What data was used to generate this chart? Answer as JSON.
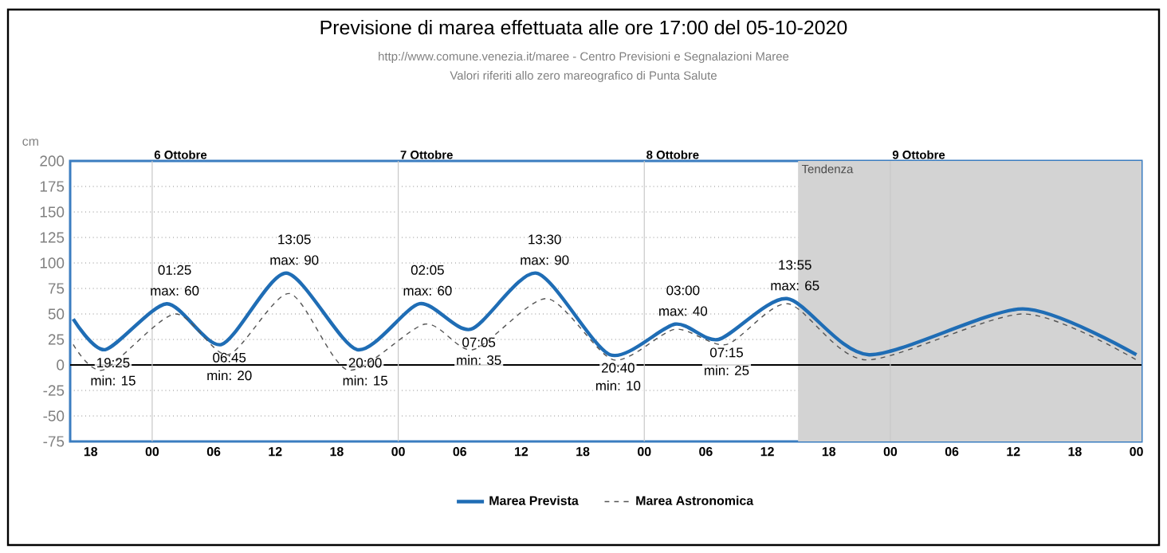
{
  "chart_data": {
    "type": "line",
    "title": "Previsione di marea effettuata alle ore 17:00 del 05-10-2020",
    "subtitle": "http://www.comune.venezia.it/maree - Centro Previsioni e Segnalazioni Maree",
    "ylabel": "cm",
    "annotations": [
      "Valori riferiti allo zero mareografico di Punta Salute",
      {
        "text": "19:25",
        "x": "2020-10-05T19:25",
        "y": 15
      },
      {
        "text": "min: 15",
        "x": "2020-10-05T19:25",
        "y": 15
      },
      {
        "text": "01:25",
        "x": "2020-10-06T01:25",
        "y": 60
      },
      {
        "text": "max: 60",
        "x": "2020-10-06T01:25",
        "y": 60
      },
      {
        "text": "06:45",
        "x": "2020-10-06T06:45",
        "y": 20
      },
      {
        "text": "min: 20",
        "x": "2020-10-06T06:45",
        "y": 20
      },
      {
        "text": "13:05",
        "x": "2020-10-06T13:05",
        "y": 90
      },
      {
        "text": "max: 90",
        "x": "2020-10-06T13:05",
        "y": 90
      },
      {
        "text": "20:00",
        "x": "2020-10-06T20:00",
        "y": 15
      },
      {
        "text": "min: 15",
        "x": "2020-10-06T20:00",
        "y": 15
      },
      {
        "text": "02:05",
        "x": "2020-10-07T02:05",
        "y": 60
      },
      {
        "text": "max: 60",
        "x": "2020-10-07T02:05",
        "y": 60
      },
      {
        "text": "07:05",
        "x": "2020-10-07T07:05",
        "y": 35
      },
      {
        "text": "min: 35",
        "x": "2020-10-07T07:05",
        "y": 35
      },
      {
        "text": "13:30",
        "x": "2020-10-07T13:30",
        "y": 90
      },
      {
        "text": "max: 90",
        "x": "2020-10-07T13:30",
        "y": 90
      },
      {
        "text": "20:40",
        "x": "2020-10-07T20:40",
        "y": 10
      },
      {
        "text": "min: 10",
        "x": "2020-10-07T20:40",
        "y": 10
      },
      {
        "text": "03:00",
        "x": "2020-10-08T03:00",
        "y": 40
      },
      {
        "text": "max: 40",
        "x": "2020-10-08T03:00",
        "y": 40
      },
      {
        "text": "07:15",
        "x": "2020-10-08T07:15",
        "y": 25
      },
      {
        "text": "min: 25",
        "x": "2020-10-08T07:15",
        "y": 25
      },
      {
        "text": "13:55",
        "x": "2020-10-08T13:55",
        "y": 65
      },
      {
        "text": "max: 65",
        "x": "2020-10-08T13:55",
        "y": 65
      }
    ],
    "series": [
      {
        "name": "Marea Prevista",
        "color": "#1f6db5",
        "line_style": "solid",
        "x": [
          "2020-10-05T16:18",
          "2020-10-05T19:25",
          "2020-10-06T01:25",
          "2020-10-06T06:45",
          "2020-10-06T13:05",
          "2020-10-06T20:00",
          "2020-10-07T02:05",
          "2020-10-07T07:05",
          "2020-10-07T13:30",
          "2020-10-07T20:40",
          "2020-10-08T03:00",
          "2020-10-08T07:15",
          "2020-10-08T13:55",
          "2020-10-08T21:55",
          "2020-10-09T12:55",
          "2020-10-10T00:00"
        ],
        "values": [
          45,
          15,
          60,
          20,
          90,
          15,
          60,
          35,
          90,
          10,
          40,
          25,
          65,
          10,
          55,
          10
        ]
      },
      {
        "name": "Marea Astronomica",
        "color": "#555555",
        "line_style": "dashed",
        "x": [
          "2020-10-05T16:18",
          "2020-10-05T19:12",
          "2020-10-06T02:12",
          "2020-10-06T07:24",
          "2020-10-06T13:24",
          "2020-10-06T19:06",
          "2020-10-07T02:36",
          "2020-10-07T07:18",
          "2020-10-07T14:30",
          "2020-10-07T21:00",
          "2020-10-08T03:00",
          "2020-10-08T08:00",
          "2020-10-08T14:00",
          "2020-10-08T21:36",
          "2020-10-09T13:00",
          "2020-10-10T00:00"
        ],
        "values": [
          20,
          -5,
          50,
          10,
          70,
          -5,
          40,
          15,
          65,
          5,
          35,
          20,
          60,
          5,
          50,
          5
        ]
      }
    ],
    "xlim": [
      "2020-10-05T16:00",
      "2020-10-10T00:30"
    ],
    "xticks": [
      {
        "value": "2020-10-05T18:00",
        "label": "18"
      },
      {
        "value": "2020-10-06T00:00",
        "label": "00"
      },
      {
        "value": "2020-10-06T06:00",
        "label": "06"
      },
      {
        "value": "2020-10-06T12:00",
        "label": "12"
      },
      {
        "value": "2020-10-06T18:00",
        "label": "18"
      },
      {
        "value": "2020-10-07T00:00",
        "label": "00"
      },
      {
        "value": "2020-10-07T06:00",
        "label": "06"
      },
      {
        "value": "2020-10-07T12:00",
        "label": "12"
      },
      {
        "value": "2020-10-07T18:00",
        "label": "18"
      },
      {
        "value": "2020-10-08T00:00",
        "label": "00"
      },
      {
        "value": "2020-10-08T06:00",
        "label": "06"
      },
      {
        "value": "2020-10-08T12:00",
        "label": "12"
      },
      {
        "value": "2020-10-08T18:00",
        "label": "18"
      },
      {
        "value": "2020-10-09T00:00",
        "label": "00"
      },
      {
        "value": "2020-10-09T06:00",
        "label": "06"
      },
      {
        "value": "2020-10-09T12:00",
        "label": "12"
      },
      {
        "value": "2020-10-09T18:00",
        "label": "18"
      },
      {
        "value": "2020-10-10T00:00",
        "label": "00"
      }
    ],
    "ylim": [
      -75,
      200
    ],
    "yticks": [
      -75,
      -50,
      -25,
      0,
      25,
      50,
      75,
      100,
      125,
      150,
      175,
      200
    ],
    "ref_lines": [
      {
        "axis": "y",
        "value": 0,
        "color": "#000000"
      },
      {
        "axis": "x",
        "value": "2020-10-06T00:00",
        "label": "6 Ottobre",
        "color": "#c8c8c8"
      },
      {
        "axis": "x",
        "value": "2020-10-07T00:00",
        "label": "7 Ottobre",
        "color": "#c8c8c8"
      },
      {
        "axis": "x",
        "value": "2020-10-08T00:00",
        "label": "8 Ottobre",
        "color": "#c8c8c8"
      },
      {
        "axis": "x",
        "value": "2020-10-09T00:00",
        "label": "9 Ottobre",
        "color": "#c8c8c8"
      }
    ],
    "bands": [
      {
        "axis": "x",
        "from": "2020-10-08T15:00",
        "to": "2020-10-10T00:30",
        "label": "Tendenza",
        "color": "#d3d3d3"
      }
    ],
    "grid": "y",
    "legend": "bottom",
    "marker": "none"
  }
}
